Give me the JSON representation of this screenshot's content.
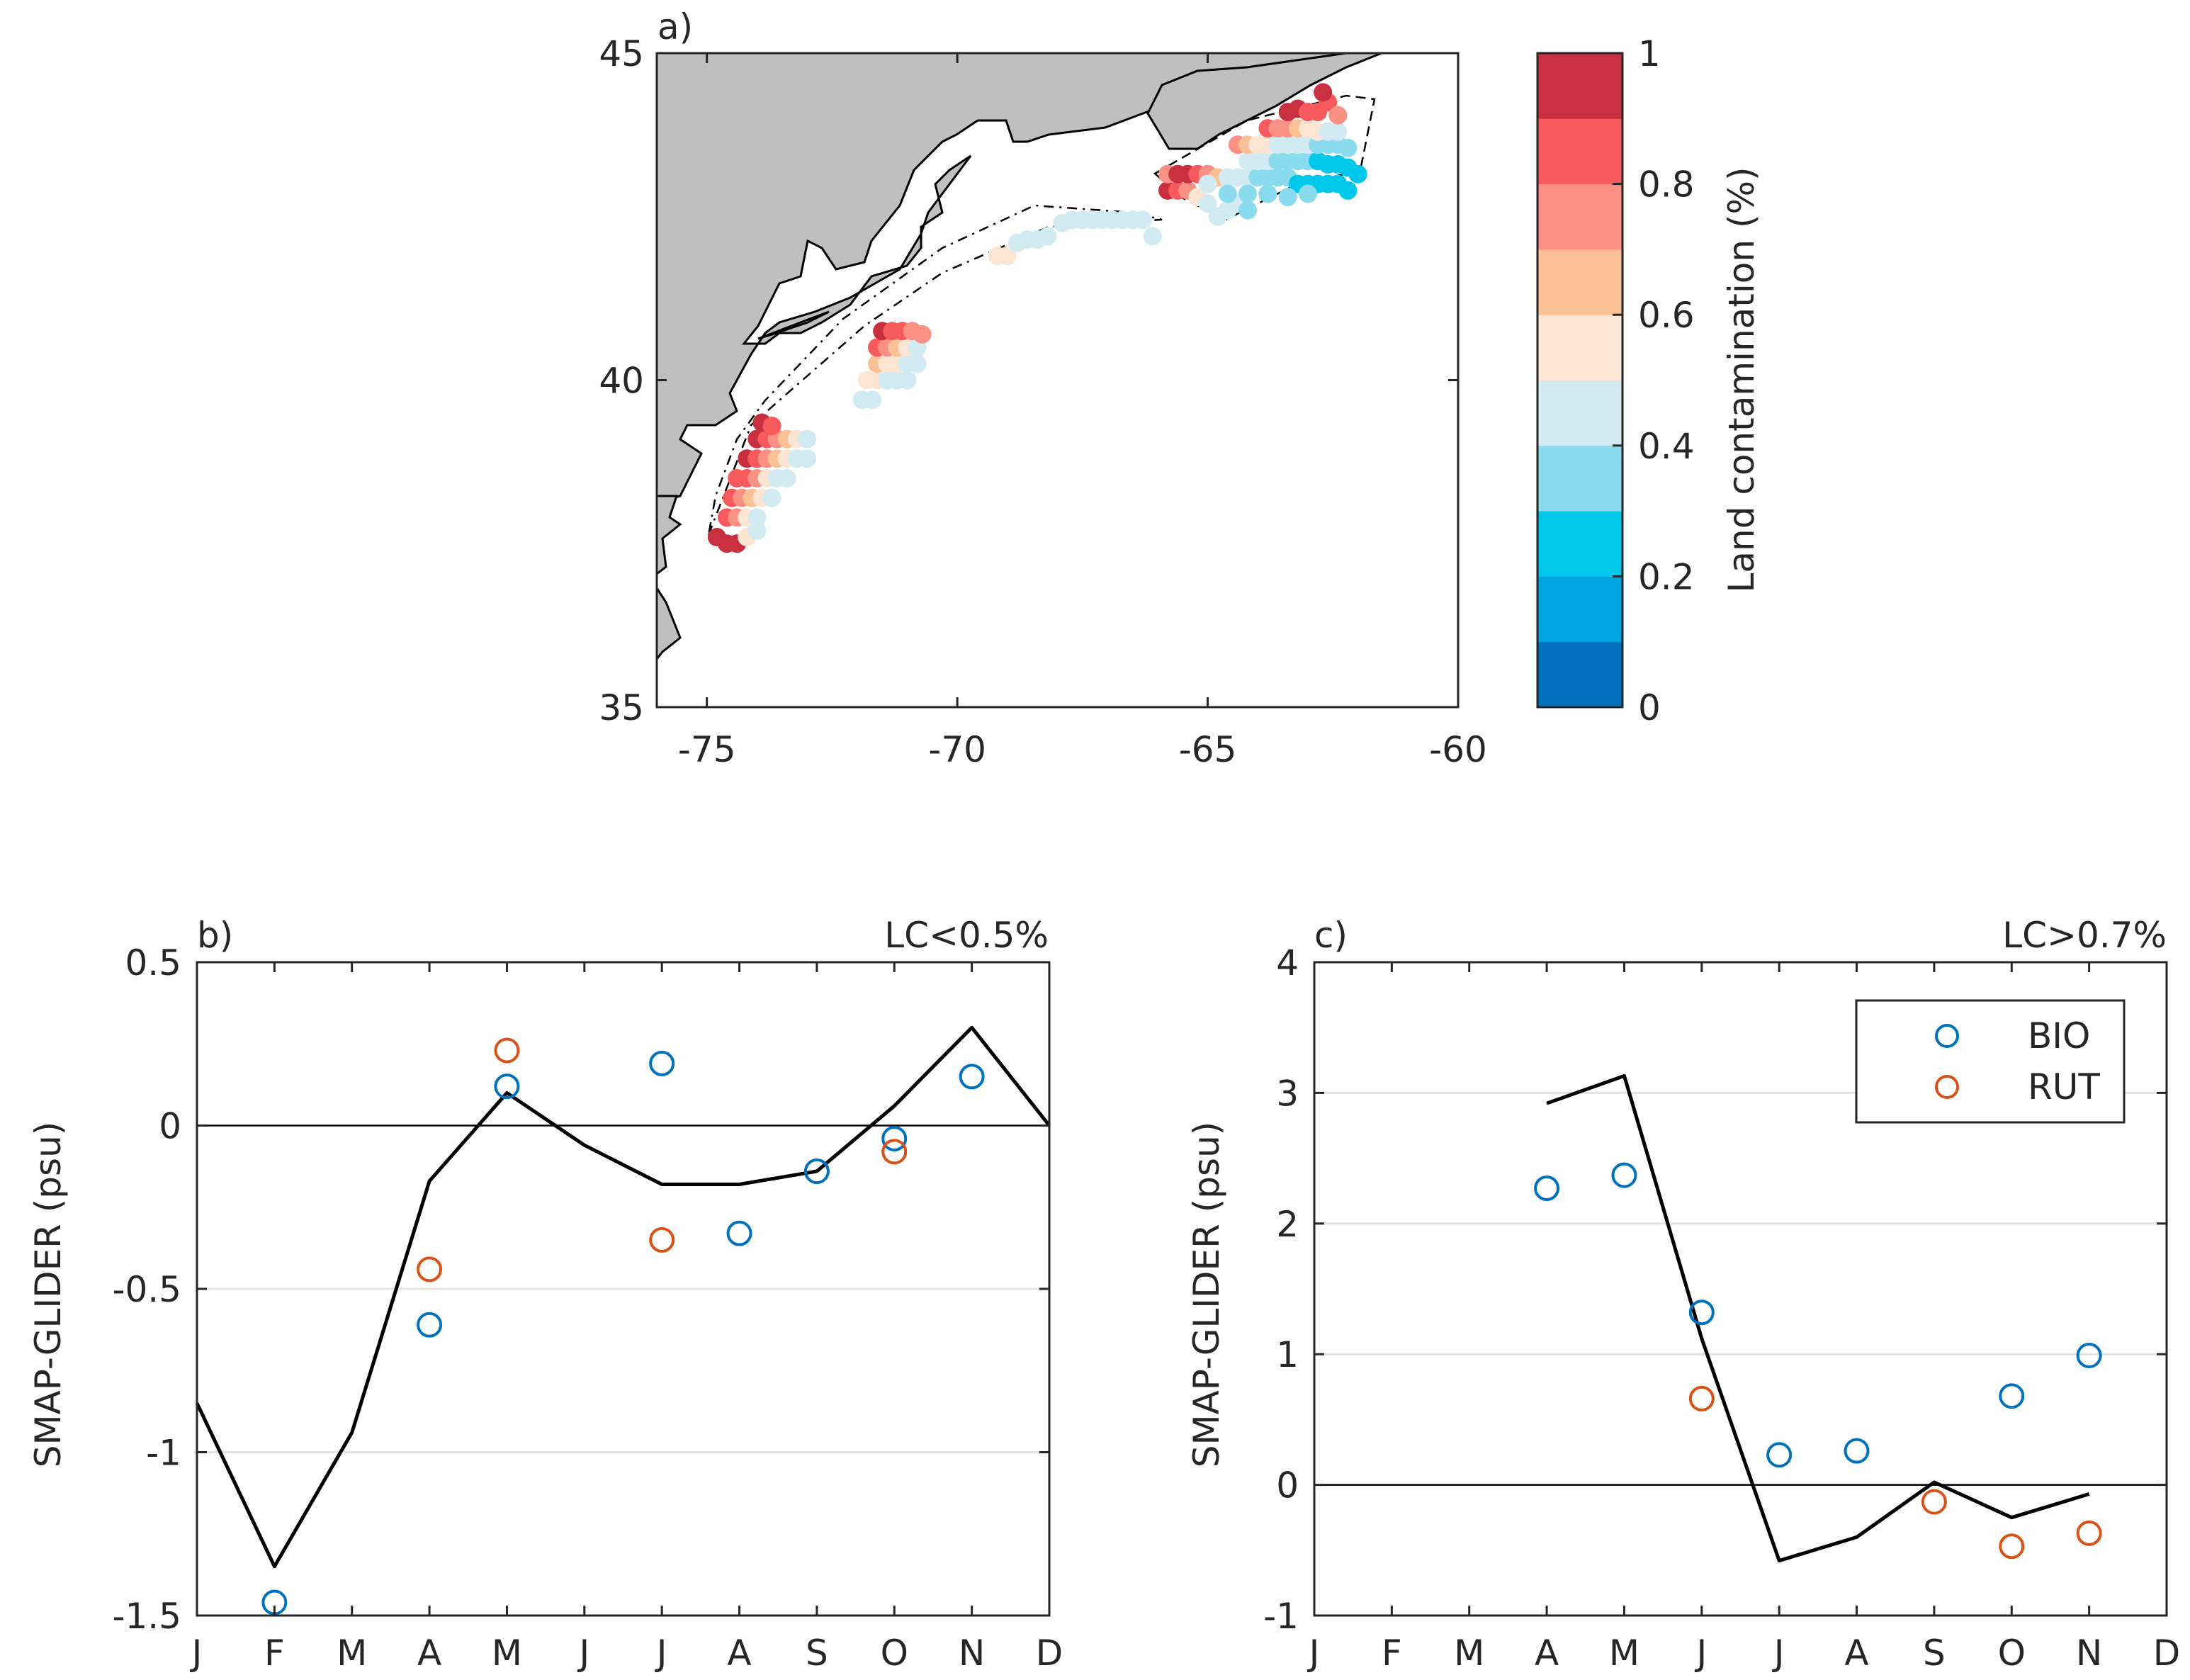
{
  "chart_data": [
    {
      "type": "scatter",
      "panel_label": "a)",
      "xlim": [
        -76,
        -60
      ],
      "ylim": [
        35,
        45
      ],
      "xticks": [
        -75,
        -70,
        -65,
        -60
      ],
      "yticks": [
        35,
        40,
        45
      ],
      "colorbar": {
        "label": "Land contamination (%)",
        "min": 0,
        "max": 1,
        "ticks": [
          0,
          0.2,
          0.4,
          0.6,
          0.8,
          1
        ],
        "colors": [
          "#0072BD",
          "#00A4DF",
          "#00C8EA",
          "#8ADBEE",
          "#D2EAF2",
          "#FDE5D3",
          "#FBC093",
          "#FA9083",
          "#F65A5D",
          "#C8303F"
        ]
      },
      "land_color": "#BFBFBF",
      "points_lon_lat_lc": [
        [
          -74.8,
          37.6,
          0.95
        ],
        [
          -74.6,
          37.5,
          0.95
        ],
        [
          -74.4,
          37.5,
          0.95
        ],
        [
          -74.2,
          37.6,
          0.5
        ],
        [
          -74.0,
          37.7,
          0.4
        ],
        [
          -74.6,
          37.9,
          0.85
        ],
        [
          -74.4,
          37.9,
          0.75
        ],
        [
          -74.2,
          37.9,
          0.55
        ],
        [
          -74.0,
          37.9,
          0.4
        ],
        [
          -74.5,
          38.2,
          0.85
        ],
        [
          -74.3,
          38.2,
          0.75
        ],
        [
          -74.1,
          38.2,
          0.6
        ],
        [
          -73.9,
          38.2,
          0.5
        ],
        [
          -73.7,
          38.2,
          0.45
        ],
        [
          -74.4,
          38.5,
          0.85
        ],
        [
          -74.2,
          38.5,
          0.8
        ],
        [
          -74.0,
          38.5,
          0.7
        ],
        [
          -73.8,
          38.5,
          0.55
        ],
        [
          -73.6,
          38.5,
          0.45
        ],
        [
          -73.4,
          38.5,
          0.45
        ],
        [
          -74.2,
          38.8,
          0.9
        ],
        [
          -74.0,
          38.8,
          0.85
        ],
        [
          -73.8,
          38.8,
          0.75
        ],
        [
          -73.6,
          38.8,
          0.6
        ],
        [
          -73.4,
          38.8,
          0.5
        ],
        [
          -73.2,
          38.8,
          0.45
        ],
        [
          -73.0,
          38.8,
          0.45
        ],
        [
          -74.0,
          39.1,
          0.95
        ],
        [
          -73.8,
          39.1,
          0.85
        ],
        [
          -73.6,
          39.1,
          0.7
        ],
        [
          -73.4,
          39.1,
          0.6
        ],
        [
          -73.2,
          39.1,
          0.5
        ],
        [
          -73.0,
          39.1,
          0.45
        ],
        [
          -73.9,
          39.35,
          0.95
        ],
        [
          -73.7,
          39.3,
          0.85
        ],
        [
          -71.9,
          39.7,
          0.45
        ],
        [
          -71.7,
          39.7,
          0.45
        ],
        [
          -71.8,
          40.0,
          0.55
        ],
        [
          -71.6,
          40.0,
          0.5
        ],
        [
          -71.4,
          40.0,
          0.45
        ],
        [
          -71.2,
          40.0,
          0.45
        ],
        [
          -71.0,
          40.0,
          0.45
        ],
        [
          -71.6,
          40.25,
          0.6
        ],
        [
          -71.4,
          40.25,
          0.55
        ],
        [
          -71.2,
          40.25,
          0.5
        ],
        [
          -71.0,
          40.25,
          0.45
        ],
        [
          -70.8,
          40.25,
          0.45
        ],
        [
          -71.6,
          40.5,
          0.8
        ],
        [
          -71.4,
          40.5,
          0.7
        ],
        [
          -71.2,
          40.5,
          0.6
        ],
        [
          -71.0,
          40.5,
          0.5
        ],
        [
          -70.8,
          40.5,
          0.45
        ],
        [
          -71.5,
          40.75,
          0.9
        ],
        [
          -71.3,
          40.75,
          0.85
        ],
        [
          -71.1,
          40.75,
          0.8
        ],
        [
          -70.9,
          40.75,
          0.75
        ],
        [
          -70.7,
          40.7,
          0.7
        ],
        [
          -69.2,
          41.9,
          0.55
        ],
        [
          -69.0,
          41.9,
          0.55
        ],
        [
          -68.8,
          42.1,
          0.45
        ],
        [
          -68.6,
          42.15,
          0.4
        ],
        [
          -68.4,
          42.15,
          0.4
        ],
        [
          -68.2,
          42.2,
          0.4
        ],
        [
          -67.9,
          42.4,
          0.4
        ],
        [
          -67.7,
          42.45,
          0.4
        ],
        [
          -67.5,
          42.45,
          0.4
        ],
        [
          -67.3,
          42.45,
          0.4
        ],
        [
          -67.1,
          42.45,
          0.4
        ],
        [
          -66.9,
          42.45,
          0.4
        ],
        [
          -66.7,
          42.45,
          0.4
        ],
        [
          -66.5,
          42.45,
          0.4
        ],
        [
          -66.3,
          42.45,
          0.4
        ],
        [
          -66.1,
          42.2,
          0.4
        ],
        [
          -65.8,
          42.9,
          0.95
        ],
        [
          -65.6,
          42.9,
          0.85
        ],
        [
          -65.4,
          42.9,
          0.7
        ],
        [
          -65.2,
          42.8,
          0.55
        ],
        [
          -65.0,
          42.7,
          0.45
        ],
        [
          -64.8,
          42.5,
          0.4
        ],
        [
          -64.6,
          42.6,
          0.4
        ],
        [
          -64.4,
          42.7,
          0.4
        ],
        [
          -64.2,
          42.6,
          0.35
        ],
        [
          -65.8,
          43.15,
          0.7
        ],
        [
          -65.6,
          43.15,
          0.9
        ],
        [
          -65.4,
          43.15,
          0.95
        ],
        [
          -65.2,
          43.15,
          0.85
        ],
        [
          -65.0,
          43.15,
          0.75
        ],
        [
          -64.8,
          43.1,
          0.6
        ],
        [
          -64.6,
          43.1,
          0.45
        ],
        [
          -64.4,
          43.1,
          0.4
        ],
        [
          -64.2,
          43.1,
          0.4
        ],
        [
          -64.0,
          43.1,
          0.35
        ],
        [
          -63.8,
          43.1,
          0.35
        ],
        [
          -63.6,
          43.1,
          0.35
        ],
        [
          -63.4,
          43.1,
          0.3
        ],
        [
          -63.2,
          43.0,
          0.25
        ],
        [
          -63.0,
          43.0,
          0.25
        ],
        [
          -62.8,
          43.0,
          0.25
        ],
        [
          -62.6,
          43.0,
          0.2
        ],
        [
          -62.4,
          43.0,
          0.2
        ],
        [
          -62.2,
          42.9,
          0.2
        ],
        [
          -65.0,
          43.0,
          0.4
        ],
        [
          -64.6,
          42.85,
          0.35
        ],
        [
          -64.2,
          42.85,
          0.35
        ],
        [
          -63.8,
          42.85,
          0.3
        ],
        [
          -63.4,
          42.8,
          0.3
        ],
        [
          -63.0,
          42.85,
          0.3
        ],
        [
          -64.2,
          43.35,
          0.45
        ],
        [
          -64.0,
          43.35,
          0.4
        ],
        [
          -63.8,
          43.35,
          0.4
        ],
        [
          -63.6,
          43.35,
          0.35
        ],
        [
          -63.4,
          43.35,
          0.35
        ],
        [
          -63.2,
          43.35,
          0.3
        ],
        [
          -63.0,
          43.35,
          0.3
        ],
        [
          -62.8,
          43.35,
          0.25
        ],
        [
          -62.6,
          43.3,
          0.25
        ],
        [
          -62.4,
          43.3,
          0.25
        ],
        [
          -62.2,
          43.25,
          0.2
        ],
        [
          -62.0,
          43.15,
          0.2
        ],
        [
          -64.4,
          43.6,
          0.75
        ],
        [
          -64.2,
          43.6,
          0.65
        ],
        [
          -64.0,
          43.6,
          0.55
        ],
        [
          -63.8,
          43.6,
          0.5
        ],
        [
          -63.6,
          43.6,
          0.45
        ],
        [
          -63.4,
          43.6,
          0.45
        ],
        [
          -63.2,
          43.6,
          0.4
        ],
        [
          -63.0,
          43.6,
          0.4
        ],
        [
          -62.8,
          43.6,
          0.35
        ],
        [
          -62.6,
          43.6,
          0.35
        ],
        [
          -62.4,
          43.6,
          0.3
        ],
        [
          -62.2,
          43.55,
          0.3
        ],
        [
          -63.8,
          43.85,
          0.85
        ],
        [
          -63.6,
          43.85,
          0.75
        ],
        [
          -63.4,
          43.85,
          0.7
        ],
        [
          -63.2,
          43.85,
          0.6
        ],
        [
          -63.0,
          43.85,
          0.55
        ],
        [
          -62.8,
          43.8,
          0.5
        ],
        [
          -62.6,
          43.8,
          0.45
        ],
        [
          -62.4,
          43.8,
          0.4
        ],
        [
          -63.4,
          44.1,
          0.9
        ],
        [
          -63.2,
          44.15,
          0.9
        ],
        [
          -63.0,
          44.1,
          0.85
        ],
        [
          -62.8,
          44.1,
          0.8
        ],
        [
          -62.6,
          44.25,
          0.85
        ],
        [
          -62.4,
          44.05,
          0.75
        ],
        [
          -62.7,
          44.4,
          0.95
        ]
      ]
    },
    {
      "type": "line",
      "panel_label": "b)",
      "annotation": "LC<0.5%",
      "ylabel": "SMAP-GLIDER (psu)",
      "categories": [
        "J",
        "F",
        "M",
        "A",
        "M",
        "J",
        "J",
        "A",
        "S",
        "O",
        "N",
        "D"
      ],
      "ylim": [
        -1.5,
        0.5
      ],
      "yticks": [
        -1.5,
        -1,
        -0.5,
        0,
        0.5
      ],
      "ytick_labels": [
        "-1.5",
        "-1",
        "-0.5",
        "0",
        "0.5"
      ],
      "line": [
        -0.85,
        -1.35,
        -0.94,
        -0.17,
        0.1,
        -0.06,
        -0.18,
        -0.18,
        -0.14,
        0.06,
        0.3,
        0.0
      ],
      "series": [
        {
          "name": "BIO",
          "values": [
            null,
            -1.46,
            null,
            -0.61,
            0.12,
            null,
            0.19,
            -0.33,
            -0.14,
            -0.04,
            0.15,
            null
          ]
        },
        {
          "name": "RUT",
          "values": [
            null,
            null,
            null,
            -0.44,
            0.23,
            null,
            -0.35,
            null,
            null,
            -0.08,
            null,
            null
          ]
        }
      ]
    },
    {
      "type": "line",
      "panel_label": "c)",
      "annotation": "LC>0.7%",
      "ylabel": "SMAP-GLIDER (psu)",
      "categories": [
        "J",
        "F",
        "M",
        "A",
        "M",
        "J",
        "J",
        "A",
        "S",
        "O",
        "N",
        "D"
      ],
      "ylim": [
        -1,
        4
      ],
      "yticks": [
        -1,
        0,
        1,
        2,
        3,
        4
      ],
      "ytick_labels": [
        "-1",
        "0",
        "1",
        "2",
        "3",
        "4"
      ],
      "line": [
        null,
        null,
        null,
        2.92,
        3.13,
        1.12,
        -0.58,
        -0.4,
        0.02,
        -0.25,
        -0.07,
        null
      ],
      "series": [
        {
          "name": "BIO",
          "values": [
            null,
            null,
            null,
            2.27,
            2.37,
            1.32,
            0.23,
            0.26,
            null,
            0.68,
            0.99,
            null
          ]
        },
        {
          "name": "RUT",
          "values": [
            null,
            null,
            null,
            null,
            null,
            0.66,
            null,
            null,
            -0.13,
            -0.47,
            -0.37,
            null
          ]
        }
      ]
    }
  ],
  "series_colors": {
    "BIO": "#0072BD",
    "RUT": "#D95319"
  },
  "legend": {
    "items": [
      "BIO",
      "RUT"
    ]
  }
}
